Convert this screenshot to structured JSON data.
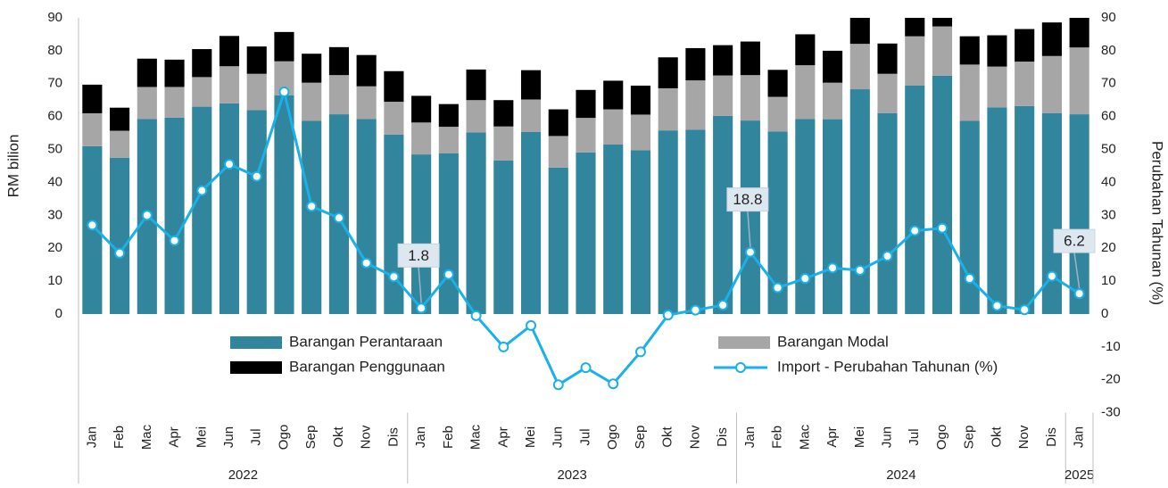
{
  "chart_data": {
    "type": "bar-line",
    "y_label": "RM bilion",
    "y2_label": "Perubahan Tahunan (%)",
    "categories": [
      "Jan",
      "Feb",
      "Mac",
      "Apr",
      "Mei",
      "Jun",
      "Jul",
      "Ogo",
      "Sep",
      "Okt",
      "Nov",
      "Dis",
      "Jan",
      "Feb",
      "Mac",
      "Apr",
      "Mei",
      "Jun",
      "Jul",
      "Ogo",
      "Sep",
      "Okt",
      "Nov",
      "Dis",
      "Jan",
      "Feb",
      "Mac",
      "Apr",
      "Mei",
      "Jun",
      "Jul",
      "Ogo",
      "Sep",
      "Okt",
      "Nov",
      "Dis",
      "Jan"
    ],
    "groups": [
      "2022",
      "2023",
      "2024",
      "2025"
    ],
    "ylim": [
      0,
      90
    ],
    "yticks": [
      0,
      10,
      20,
      30,
      40,
      50,
      60,
      70,
      80,
      90
    ],
    "y2lim": [
      -30,
      90
    ],
    "y2ticks": [
      -30,
      -20,
      -10,
      0,
      10,
      20,
      30,
      40,
      50,
      60,
      70,
      80,
      90
    ],
    "series": [
      {
        "name": "Barangan Perantaraan",
        "color": "#31859c",
        "type": "bar",
        "values": [
          51,
          47.5,
          59.3,
          59.7,
          63,
          64,
          62,
          66.5,
          58.7,
          60.7,
          59.3,
          54.5,
          48.5,
          48.8,
          55.2,
          46.7,
          55.3,
          44.5,
          49.1,
          51.5,
          49.8,
          55.8,
          56,
          60.2,
          58.8,
          55.5,
          59.3,
          59.2,
          68.3,
          61,
          69.4,
          72.4,
          58.7,
          62.8,
          63.2,
          61,
          60.7
        ]
      },
      {
        "name": "Barangan Modal",
        "color": "#a6a6a6",
        "type": "bar",
        "values": [
          10,
          8.2,
          9.7,
          9.3,
          9,
          11.3,
          11,
          10.3,
          11.6,
          11.9,
          9.9,
          10,
          9.7,
          8.1,
          9.8,
          10.3,
          9.9,
          9.6,
          10.5,
          10.7,
          10.8,
          12.8,
          15,
          12.3,
          13.8,
          10.5,
          16.3,
          11.1,
          13.8,
          12,
          15,
          15,
          17.1,
          12.4,
          13.5,
          17.4,
          20.3
        ]
      },
      {
        "name": "Barangan Penggunaan",
        "color": "#000000",
        "type": "bar",
        "values": [
          8.7,
          7,
          8.6,
          8.3,
          8.5,
          9.2,
          8.3,
          8.9,
          8.8,
          8.5,
          9.5,
          9.3,
          8.1,
          6.9,
          9.3,
          8,
          8.9,
          8.1,
          8.5,
          8.7,
          8.8,
          9.4,
          9.8,
          9.2,
          10.2,
          8.2,
          9.4,
          9.7,
          9.4,
          9.2,
          8.6,
          8.6,
          8.6,
          9.5,
          9.9,
          10.2,
          9.5
        ]
      },
      {
        "name": "Import - Perubahan Tahunan (%)",
        "color": "#1ab0e8",
        "type": "line",
        "axis": "y2",
        "values": [
          27,
          18.5,
          30,
          22.3,
          37.5,
          45.5,
          41.8,
          67.5,
          32.7,
          29.2,
          15.5,
          11.3,
          1.8,
          12,
          -0.5,
          -10,
          -3.5,
          -21.5,
          -16.3,
          -21.2,
          -11.5,
          -0.3,
          1.2,
          2.7,
          18.8,
          8,
          10.8,
          14,
          13.3,
          17.6,
          25.3,
          26.1,
          10.8,
          2.5,
          1.3,
          11.5,
          6.2
        ],
        "value_labels": [
          null,
          null,
          null,
          null,
          null,
          null,
          null,
          null,
          null,
          null,
          null,
          null,
          "1.8",
          null,
          null,
          null,
          null,
          null,
          null,
          null,
          null,
          null,
          null,
          null,
          "18.8",
          null,
          null,
          null,
          null,
          null,
          null,
          null,
          null,
          null,
          null,
          null,
          "6.2"
        ]
      }
    ]
  }
}
